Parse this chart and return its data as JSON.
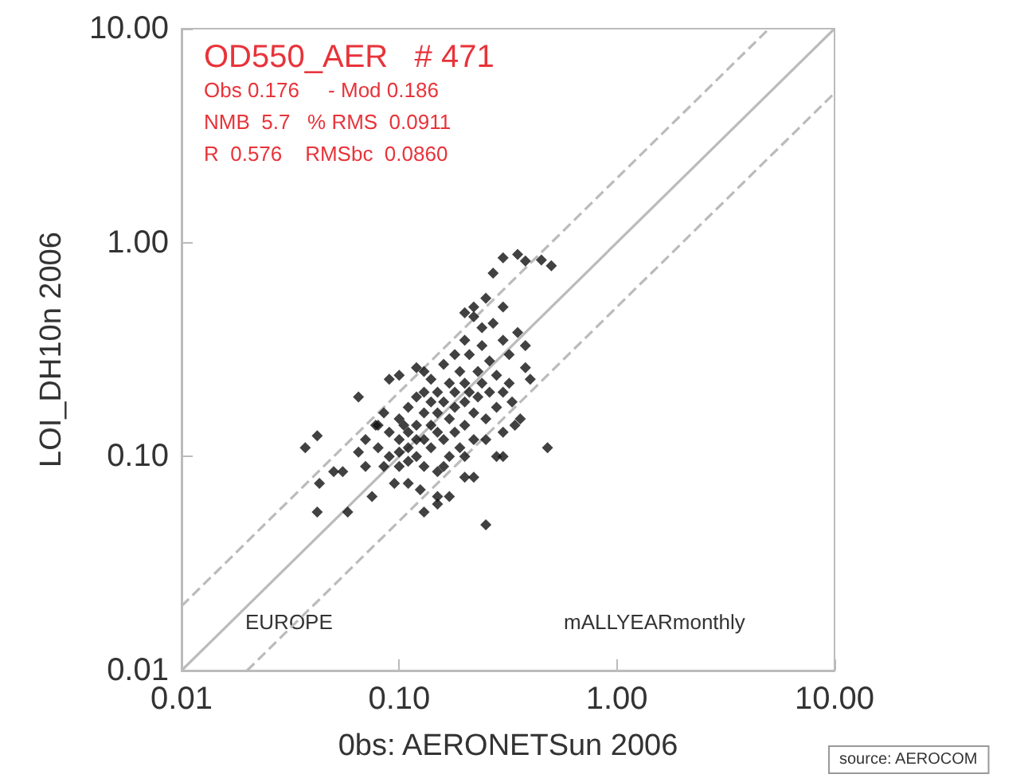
{
  "chart_data": {
    "type": "scatter",
    "xlabel": "0bs: AERONETSun 2006",
    "ylabel": "LOI_DH10n 2006",
    "annotations": [
      "OD550_AER   # 471",
      "Obs 0.176     - Mod 0.186",
      "NMB  5.7   % RMS  0.0911",
      "R  0.576    RMSbc  0.0860",
      "EUROPE",
      "mALLYEARmonthly",
      "source: AEROCOM"
    ],
    "log": "xy",
    "grid": false,
    "xlim": [
      0.01,
      10
    ],
    "ylim": [
      0.01,
      10
    ],
    "xticks": [
      0.01,
      {
        "value": 0.1,
        "label": "0.10"
      },
      {
        "value": 1,
        "label": "1.00"
      },
      {
        "value": 10,
        "label": "10.00"
      }
    ],
    "yticks": [
      0.01,
      {
        "value": 0.1,
        "label": "0.10"
      },
      {
        "value": 1,
        "label": "1.00"
      },
      {
        "value": 10,
        "label": "10.00"
      }
    ],
    "series": [
      {
        "type": "line",
        "color": "#bbbbbb",
        "line_style": "solid",
        "marker": "none",
        "x": [
          0.01,
          10
        ],
        "values": [
          0.01,
          10
        ]
      },
      {
        "type": "line",
        "color": "#bbbbbb",
        "line_style": "dashed",
        "marker": "none",
        "x": [
          0.01,
          5
        ],
        "values": [
          0.02,
          10
        ]
      },
      {
        "type": "line",
        "color": "#bbbbbb",
        "line_style": "dashed",
        "marker": "none",
        "x": [
          0.02,
          10
        ],
        "values": [
          0.01,
          5
        ]
      },
      {
        "color": "#111111",
        "marker": "diamond",
        "x": [
          0.037,
          0.042,
          0.043,
          0.042,
          0.05,
          0.055,
          0.058,
          0.065,
          0.07,
          0.075,
          0.078,
          0.085,
          0.09,
          0.1,
          0.11,
          0.12,
          0.13,
          0.13,
          0.15,
          0.15,
          0.17,
          0.2,
          0.22,
          0.25,
          0.28,
          0.3,
          0.34,
          0.36,
          0.48,
          0.4,
          0.38,
          0.38,
          0.35,
          0.3,
          0.25,
          0.27,
          0.3,
          0.35,
          0.38,
          0.45,
          0.5,
          0.22,
          0.2,
          0.22,
          0.27,
          0.3,
          0.32,
          0.08,
          0.09,
          0.09,
          0.1,
          0.1,
          0.1,
          0.11,
          0.11,
          0.11,
          0.12,
          0.12,
          0.12,
          0.13,
          0.13,
          0.13,
          0.14,
          0.14,
          0.14,
          0.15,
          0.15,
          0.15,
          0.15,
          0.16,
          0.16,
          0.17,
          0.17,
          0.17,
          0.18,
          0.18,
          0.18,
          0.19,
          0.19,
          0.2,
          0.2,
          0.2,
          0.21,
          0.21,
          0.22,
          0.22,
          0.23,
          0.23,
          0.24,
          0.24,
          0.25,
          0.26,
          0.26,
          0.28,
          0.28,
          0.3,
          0.3,
          0.32,
          0.33,
          0.08,
          0.085,
          0.095,
          0.07,
          0.065,
          0.11,
          0.125,
          0.16,
          0.2,
          0.25,
          0.14,
          0.16,
          0.18,
          0.2,
          0.24,
          0.13,
          0.12,
          0.1,
          0.105
        ],
        "values": [
          0.11,
          0.125,
          0.075,
          0.055,
          0.085,
          0.085,
          0.055,
          0.19,
          0.12,
          0.065,
          0.14,
          0.16,
          0.23,
          0.24,
          0.095,
          0.26,
          0.055,
          0.25,
          0.06,
          0.065,
          0.065,
          0.08,
          0.08,
          0.048,
          0.1,
          0.1,
          0.14,
          0.15,
          0.11,
          0.23,
          0.26,
          0.33,
          0.38,
          0.5,
          0.55,
          0.72,
          0.85,
          0.88,
          0.82,
          0.83,
          0.78,
          0.5,
          0.47,
          0.45,
          0.42,
          0.35,
          0.3,
          0.11,
          0.13,
          0.1,
          0.12,
          0.15,
          0.09,
          0.13,
          0.17,
          0.11,
          0.14,
          0.1,
          0.19,
          0.16,
          0.12,
          0.09,
          0.18,
          0.14,
          0.11,
          0.2,
          0.16,
          0.13,
          0.085,
          0.18,
          0.12,
          0.22,
          0.15,
          0.1,
          0.2,
          0.17,
          0.13,
          0.25,
          0.11,
          0.22,
          0.18,
          0.14,
          0.3,
          0.2,
          0.16,
          0.12,
          0.25,
          0.19,
          0.33,
          0.22,
          0.15,
          0.28,
          0.2,
          0.24,
          0.17,
          0.2,
          0.13,
          0.22,
          0.18,
          0.14,
          0.09,
          0.075,
          0.09,
          0.105,
          0.075,
          0.07,
          0.09,
          0.1,
          0.12,
          0.23,
          0.27,
          0.3,
          0.35,
          0.4,
          0.2,
          0.12,
          0.105,
          0.14
        ]
      }
    ]
  }
}
